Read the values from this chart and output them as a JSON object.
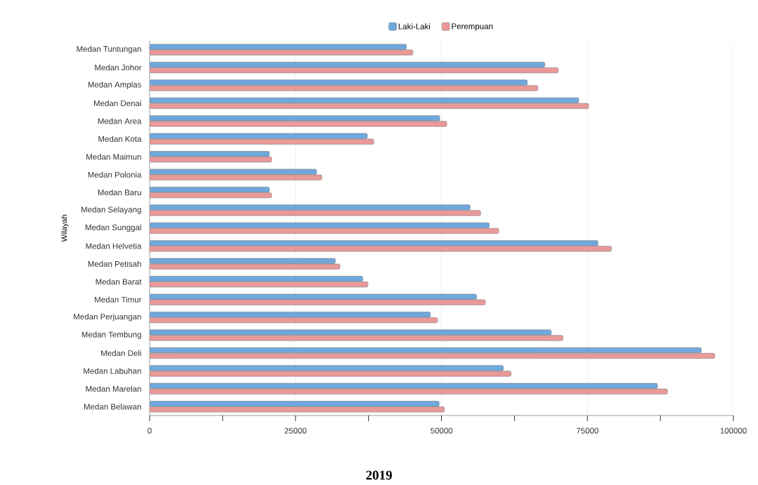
{
  "chart_data": {
    "type": "bar",
    "orientation": "horizontal",
    "title": "2019",
    "ylabel": "Wilayah",
    "categories": [
      "Medan Tuntungan",
      "Medan Johor",
      "Medan Amplas",
      "Medan Denai",
      "Medan Area",
      "Medan Kota",
      "Medan Maimun",
      "Medan Polonia",
      "Medan Baru",
      "Medan Selayang",
      "Medan Sunggal",
      "Medan Helvetia",
      "Medan Petisah",
      "Medan Barat",
      "Medan Timur",
      "Medan Perjuangan",
      "Medan Tembung",
      "Medan Deli",
      "Medan Labuhan",
      "Medan Marelan",
      "Medan Belawan"
    ],
    "series": [
      {
        "name": "Laki-Laki",
        "color": "#6fa8dc",
        "values": [
          44000,
          67700,
          64700,
          73500,
          49700,
          37300,
          20500,
          28600,
          20500,
          54900,
          58200,
          76800,
          31800,
          36500,
          56000,
          48100,
          68800,
          94500,
          60600,
          87000,
          49600
        ]
      },
      {
        "name": "Perempuan",
        "color": "#ea9999",
        "values": [
          45100,
          70000,
          66500,
          75200,
          50900,
          38400,
          20900,
          29500,
          20900,
          56700,
          59800,
          79100,
          32600,
          37400,
          57500,
          49300,
          70800,
          96800,
          61900,
          88700,
          50500
        ]
      }
    ],
    "xlim": [
      0,
      100000
    ],
    "xticks": [
      0,
      {
        "value": 12500,
        "label": null
      },
      25000,
      {
        "value": 37500,
        "label": null
      },
      50000,
      {
        "value": 62500,
        "label": null
      },
      75000,
      {
        "value": 87500,
        "label": null
      },
      100000
    ],
    "grid": "x",
    "legend": "top"
  }
}
